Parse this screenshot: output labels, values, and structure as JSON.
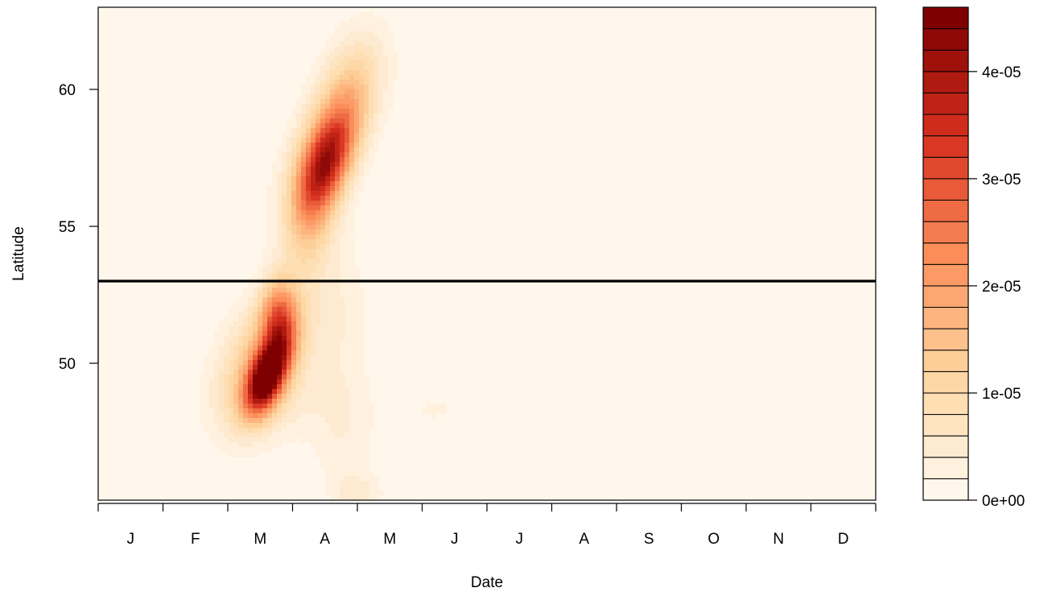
{
  "chart_data": {
    "type": "heatmap",
    "subtype": "filled-contour",
    "title": "",
    "xlabel": "Date",
    "ylabel": "Latitude",
    "x_ticks": [
      "J",
      "F",
      "M",
      "A",
      "M",
      "J",
      "J",
      "A",
      "S",
      "O",
      "N",
      "D"
    ],
    "x_unit": "month",
    "xlim": [
      0,
      12
    ],
    "y_ticks": [
      50,
      55,
      60
    ],
    "ylim": [
      45,
      63
    ],
    "reference_line": {
      "orientation": "horizontal",
      "y": 53
    },
    "colorbar": {
      "min": 0,
      "max": 4.6e-05,
      "levels": 23,
      "tick_values": [
        0,
        1e-05,
        2e-05,
        3e-05,
        4e-05
      ],
      "tick_labels": [
        "0e+00",
        "1e-05",
        "2e-05",
        "3e-05",
        "4e-05"
      ],
      "colors": [
        "#fff7ec",
        "#fdd49e",
        "#fc8d59",
        "#d7301f",
        "#7f0000"
      ]
    },
    "density_features": [
      {
        "month_position": 2.6,
        "latitude": 49.5,
        "value": 4.5e-05,
        "sx": 0.22,
        "sy": 0.9,
        "rho": 0.5
      },
      {
        "month_position": 2.8,
        "latitude": 51.5,
        "value": 2.4e-05,
        "sx": 0.2,
        "sy": 1.0,
        "rho": 0.0
      },
      {
        "month_position": 2.5,
        "latitude": 50.0,
        "value": 1.4e-05,
        "sx": 0.45,
        "sy": 1.6,
        "rho": 0.35
      },
      {
        "month_position": 3.5,
        "latitude": 57.2,
        "value": 2.7e-05,
        "sx": 0.3,
        "sy": 1.3,
        "rho": 0.55
      },
      {
        "month_position": 3.6,
        "latitude": 58.3,
        "value": 1.6e-05,
        "sx": 0.45,
        "sy": 1.8,
        "rho": 0.6
      },
      {
        "month_position": 3.3,
        "latitude": 55.0,
        "value": 9e-06,
        "sx": 0.3,
        "sy": 1.5,
        "rho": 0.4
      },
      {
        "month_position": 3.9,
        "latitude": 60.5,
        "value": 5e-06,
        "sx": 0.35,
        "sy": 1.4,
        "rho": 0.3
      },
      {
        "month_position": 3.6,
        "latitude": 52.0,
        "value": 4e-06,
        "sx": 0.4,
        "sy": 2.0,
        "rho": 0.0
      },
      {
        "month_position": 3.8,
        "latitude": 47.5,
        "value": 3.5e-06,
        "sx": 0.35,
        "sy": 1.8,
        "rho": 0.0
      },
      {
        "month_position": 4.0,
        "latitude": 45.2,
        "value": 4.5e-06,
        "sx": 0.25,
        "sy": 0.5,
        "rho": 0.0
      },
      {
        "month_position": 5.2,
        "latitude": 48.3,
        "value": 2.2e-06,
        "sx": 0.4,
        "sy": 0.5,
        "rho": 0.0
      },
      {
        "month_position": 6.7,
        "latitude": 49.8,
        "value": 2.2e-06,
        "sx": 0.06,
        "sy": 0.5,
        "rho": 0.0
      },
      {
        "month_position": 2.7,
        "latitude": 48.5,
        "value": 3e-06,
        "sx": 0.6,
        "sy": 1.0,
        "rho": 0.0
      }
    ]
  }
}
